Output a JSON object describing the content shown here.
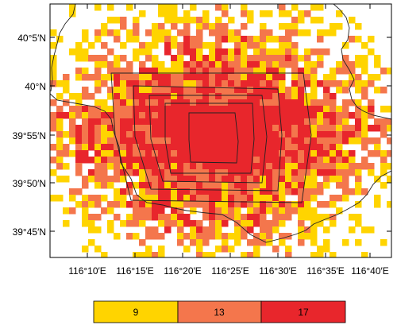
{
  "map": {
    "lat_labels": [
      "40°5′N",
      "40°N",
      "39°55′N",
      "39°50′N",
      "39°45′N"
    ],
    "lon_labels": [
      "116°10′E",
      "116°15′E",
      "116°20′E",
      "116°25′E",
      "116°30′E",
      "116°35′E",
      "116°40′E"
    ],
    "colors": {
      "low": "#ffd400",
      "mid": "#f4764c",
      "high": "#e8262c",
      "background": "#ffffff",
      "boundary": "#000000"
    }
  },
  "legend": {
    "items": [
      {
        "label": "9",
        "color": "#ffd400"
      },
      {
        "label": "13",
        "color": "#f4764c"
      },
      {
        "label": "17",
        "color": "#e8262c"
      }
    ]
  }
}
